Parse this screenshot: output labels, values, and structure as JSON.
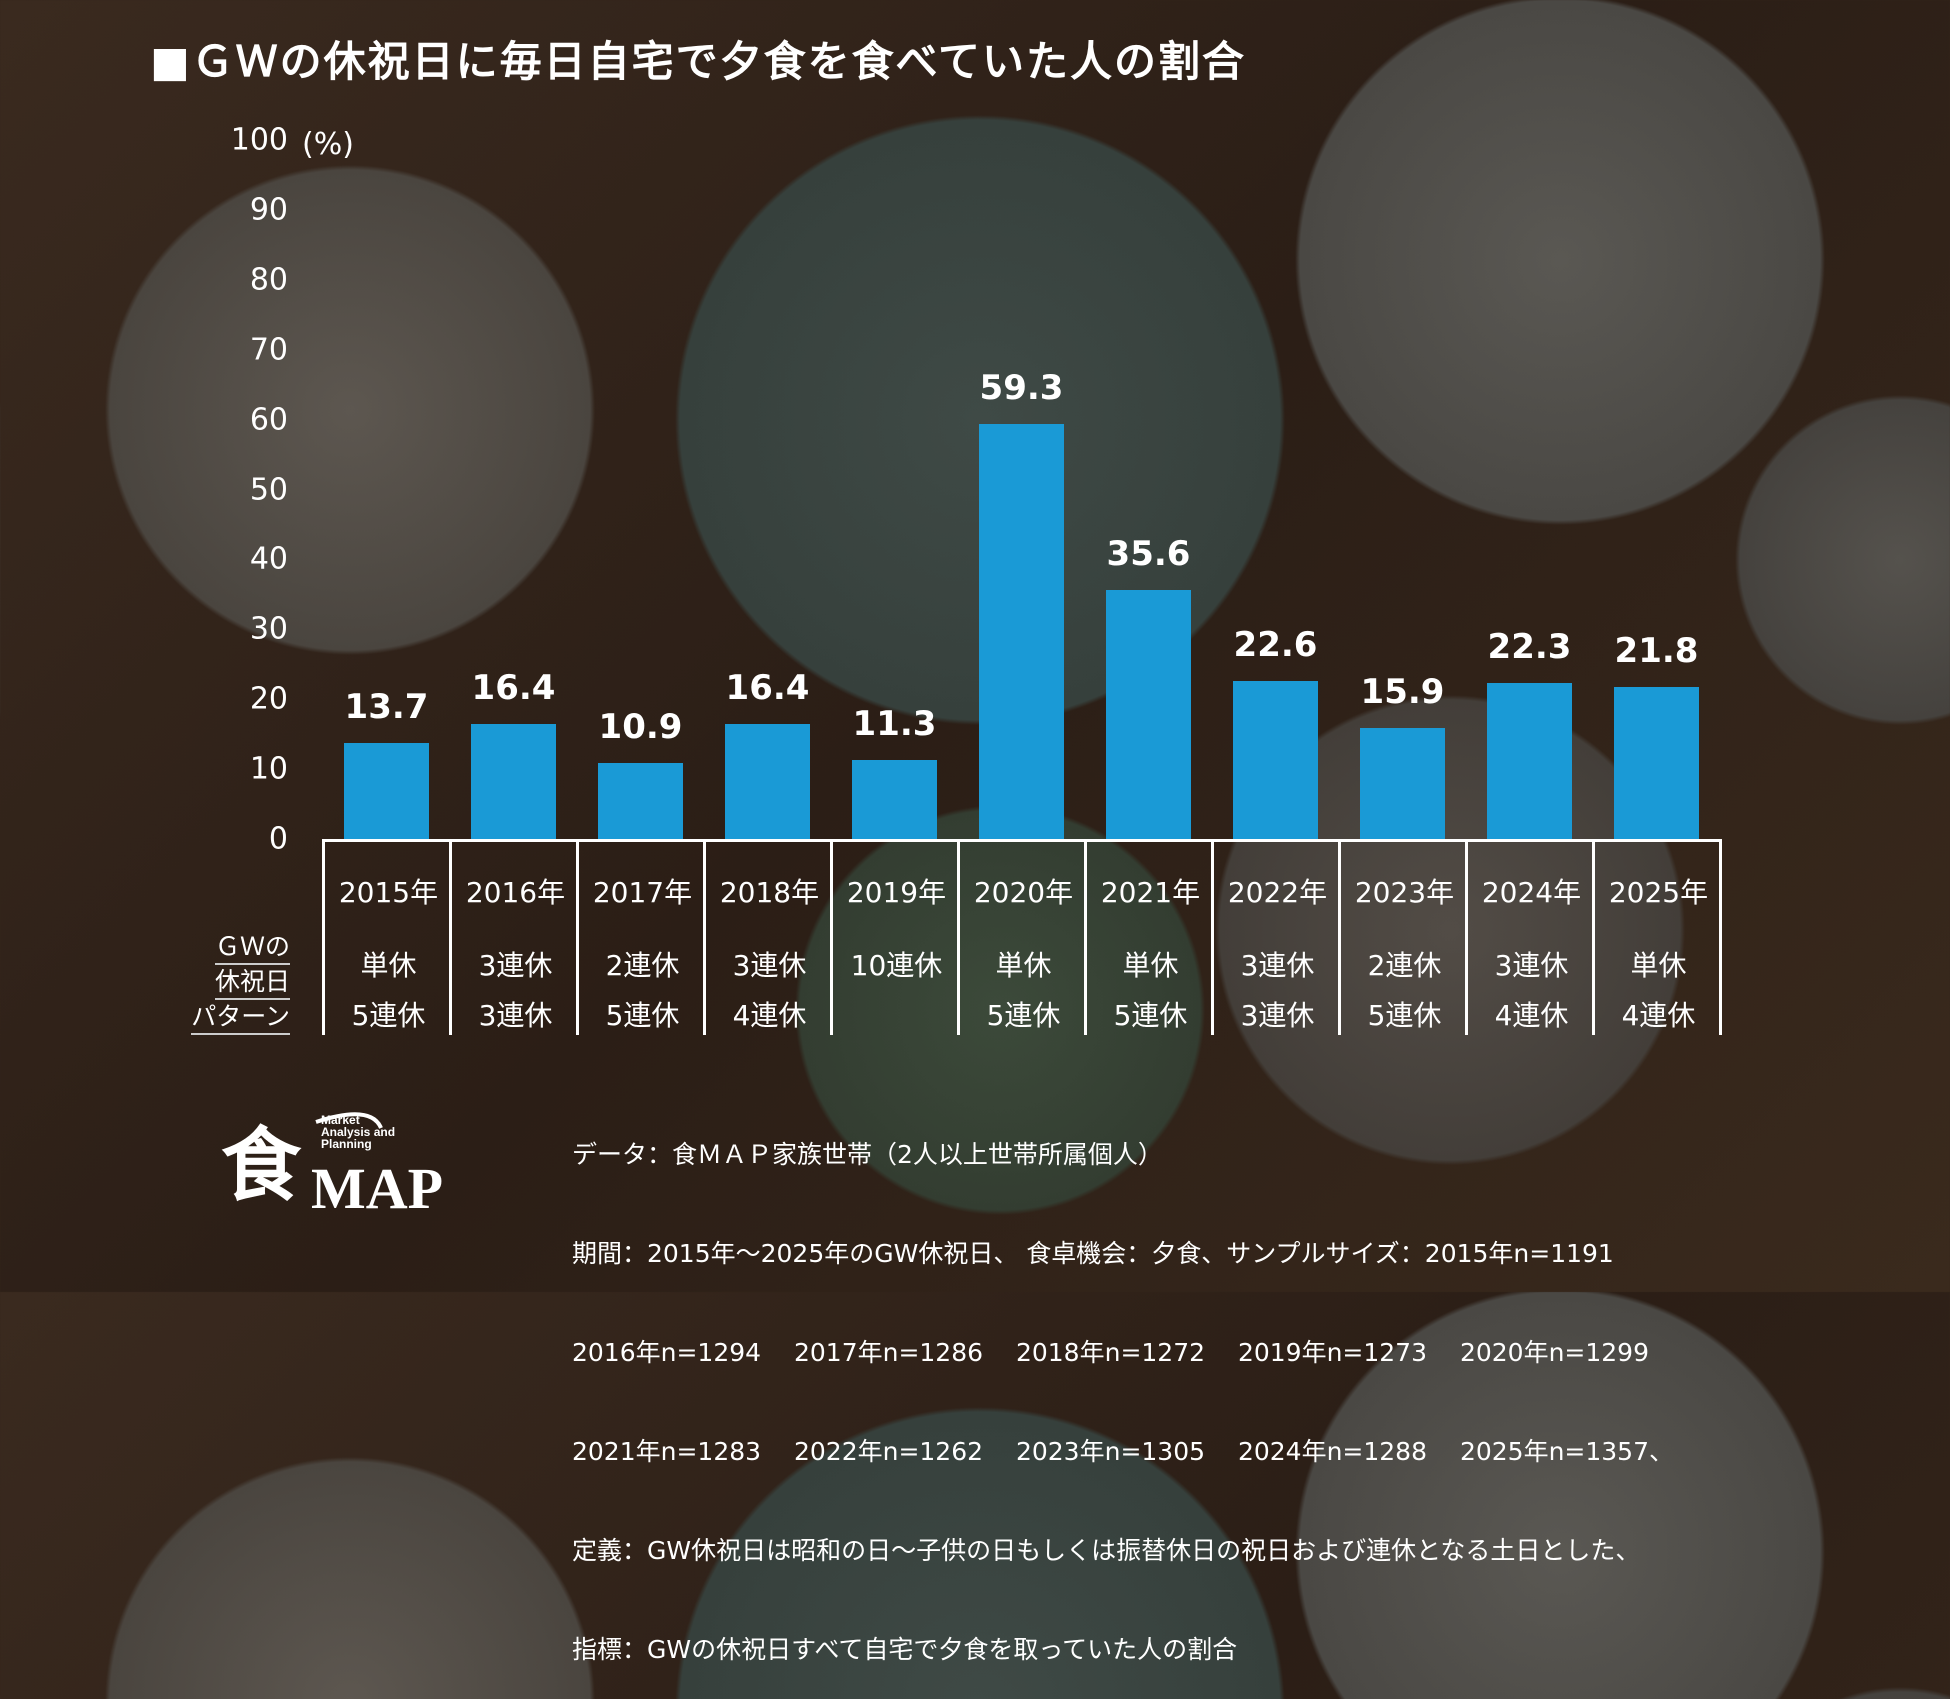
{
  "chart_data": {
    "type": "bar",
    "title": "■ＧＷの休祝日に毎日自宅で夕食を食べていた人の割合",
    "ylabel": "(%)",
    "ylim": [
      0,
      100
    ],
    "yticks": [
      0,
      10,
      20,
      30,
      40,
      50,
      60,
      70,
      80,
      90,
      100
    ],
    "categories": [
      "2015年",
      "2016年",
      "2017年",
      "2018年",
      "2019年",
      "2020年",
      "2021年",
      "2022年",
      "2023年",
      "2024年",
      "2025年"
    ],
    "values": [
      13.7,
      16.4,
      10.9,
      16.4,
      11.3,
      59.3,
      35.6,
      22.6,
      15.9,
      22.3,
      21.8
    ],
    "bar_color": "#1a9ad6",
    "grid": false
  },
  "table": {
    "row_label": [
      "ＧＷの",
      "休祝日",
      "パターン"
    ],
    "row1": [
      "単休",
      "3連休",
      "2連休",
      "3連休",
      "10連休",
      "単休",
      "単休",
      "3連休",
      "2連休",
      "3連休",
      "単休"
    ],
    "row2": [
      "5連休",
      "3連休",
      "5連休",
      "4連休",
      "",
      "5連休",
      "5連休",
      "3連休",
      "5連休",
      "4連休",
      "4連休"
    ]
  },
  "notes": [
    "データ：食ＭＡＰ家族世帯（2人以上世帯所属個人）",
    "期間：2015年～2025年のGW休祝日、 食卓機会：夕食、サンプルサイズ：2015年n=1191",
    "2016年n=1294　 2017年n=1286　 2018年n=1272　 2019年n=1273　 2020年n=1299",
    "2021年n=1283　 2022年n=1262　 2023年n=1305　 2024年n=1288　 2025年n=1357、",
    "定義：GW休祝日は昭和の日～子供の日もしくは振替休日の祝日および連休となる土日とした、",
    "指標：GWの休祝日すべて自宅で夕食を取っていた人の割合"
  ],
  "logo": {
    "main": "食MAP",
    "sub": "Market Analysis and Planning"
  }
}
